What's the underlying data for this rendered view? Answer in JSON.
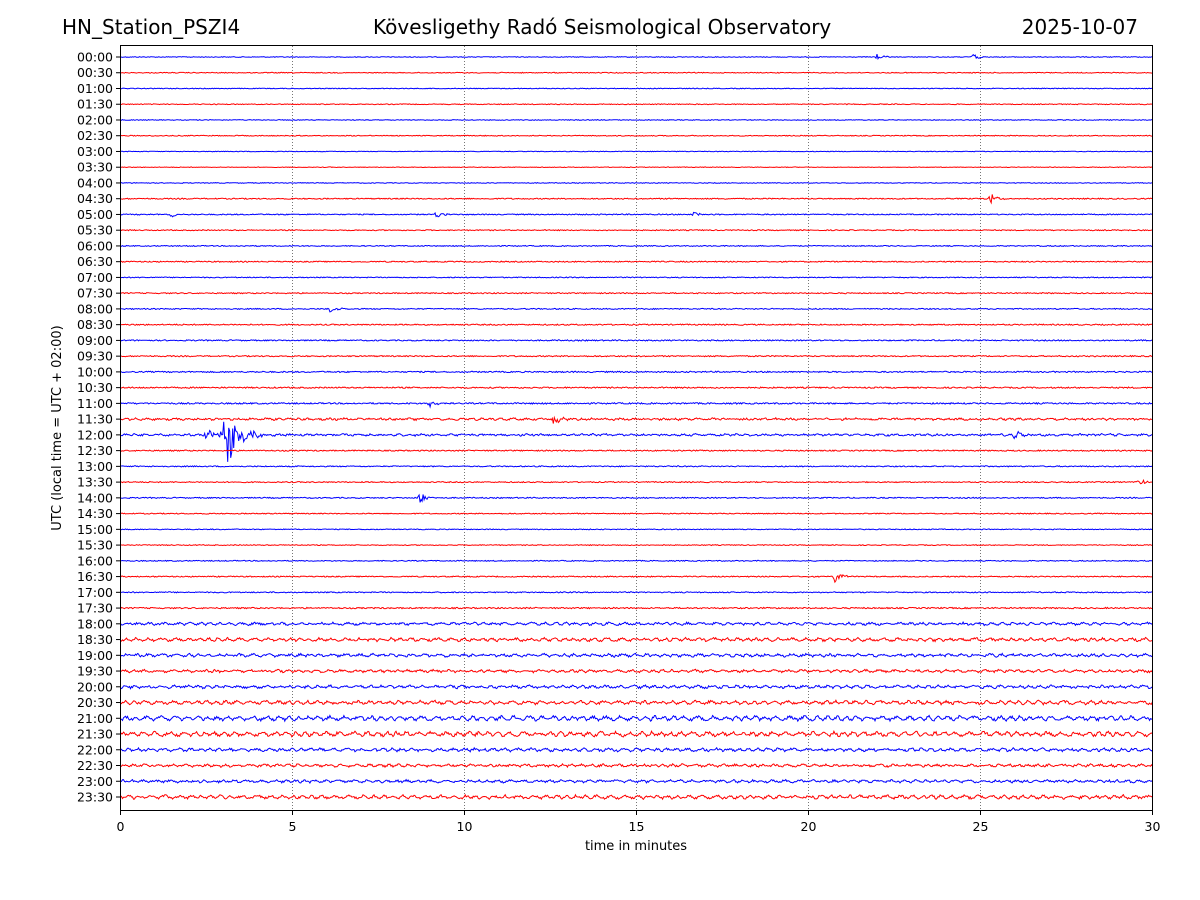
{
  "chart_data": {
    "type": "line",
    "title_left": "HN_Station_PSZI4",
    "title": "Kövesligethy Radó Seismological Observatory",
    "title_right": "2025-10-07",
    "xlabel": "time in minutes",
    "ylabel": "UTC (local time = UTC + 02:00)",
    "xlim": [
      0,
      30
    ],
    "xticks": [
      "0",
      "5",
      "10",
      "15",
      "20",
      "25",
      "30"
    ],
    "grid": "vertical dotted at each x tick",
    "row_labels": [
      "00:00",
      "00:30",
      "01:00",
      "01:30",
      "02:00",
      "02:30",
      "03:00",
      "03:30",
      "04:00",
      "04:30",
      "05:00",
      "05:30",
      "06:00",
      "06:30",
      "07:00",
      "07:30",
      "08:00",
      "08:30",
      "09:00",
      "09:30",
      "10:00",
      "10:30",
      "11:00",
      "11:30",
      "12:00",
      "12:30",
      "13:00",
      "13:30",
      "14:00",
      "14:30",
      "15:00",
      "15:30",
      "16:00",
      "16:30",
      "17:00",
      "17:30",
      "18:00",
      "18:30",
      "19:00",
      "19:30",
      "20:00",
      "20:30",
      "21:00",
      "21:30",
      "22:00",
      "22:30",
      "23:00",
      "23:30"
    ],
    "series_colors": [
      "#0000ff",
      "#ff0000"
    ],
    "noise_level": [
      0.6,
      0.7,
      0.6,
      0.7,
      0.6,
      0.7,
      0.5,
      0.5,
      0.6,
      0.9,
      0.9,
      0.8,
      0.8,
      0.9,
      0.8,
      0.9,
      0.9,
      1.0,
      1.0,
      1.0,
      1.1,
      1.1,
      1.2,
      1.4,
      1.4,
      1.0,
      0.9,
      0.9,
      0.9,
      0.8,
      0.7,
      0.7,
      0.8,
      0.9,
      0.9,
      1.1,
      1.6,
      1.8,
      1.7,
      1.6,
      1.7,
      1.9,
      2.2,
      2.2,
      1.8,
      1.6,
      1.6,
      1.9
    ],
    "events": [
      {
        "row": "00:00",
        "minute": 22.0,
        "amp": 3
      },
      {
        "row": "00:00",
        "minute": 24.8,
        "amp": 3
      },
      {
        "row": "04:30",
        "minute": 25.3,
        "amp": 6
      },
      {
        "row": "05:00",
        "minute": 1.5,
        "amp": 3
      },
      {
        "row": "05:00",
        "minute": 9.2,
        "amp": 3
      },
      {
        "row": "05:00",
        "minute": 16.7,
        "amp": 3
      },
      {
        "row": "08:00",
        "minute": 6.1,
        "amp": 5
      },
      {
        "row": "11:00",
        "minute": 9.0,
        "amp": 5
      },
      {
        "row": "11:30",
        "minute": 12.6,
        "amp": 5
      },
      {
        "row": "12:00",
        "minute": 3.1,
        "amp": 30
      },
      {
        "row": "12:00",
        "minute": 2.5,
        "amp": 8
      },
      {
        "row": "12:00",
        "minute": 26.0,
        "amp": 5
      },
      {
        "row": "14:00",
        "minute": 8.7,
        "amp": 6
      },
      {
        "row": "16:30",
        "minute": 20.8,
        "amp": 7
      },
      {
        "row": "13:30",
        "minute": 29.6,
        "amp": 4
      }
    ]
  }
}
